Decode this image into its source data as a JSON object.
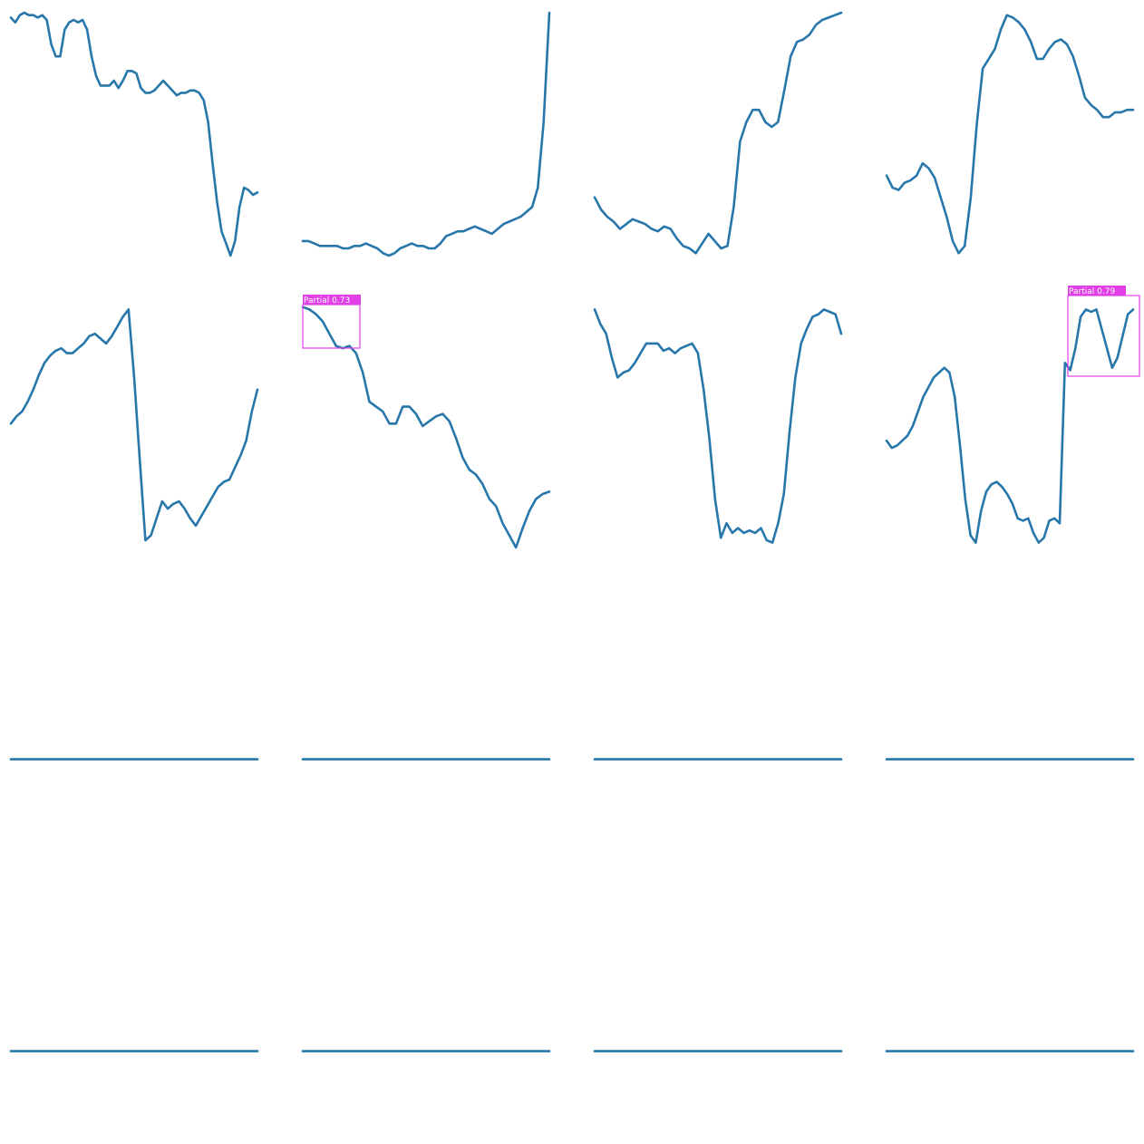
{
  "colors": {
    "line": "#2777ab",
    "detection": "#e040e6",
    "background": "#ffffff"
  },
  "chart_data": [
    {
      "type": "line",
      "panel": 1,
      "values": [
        0.98,
        0.96,
        0.99,
        1.0,
        0.99,
        0.99,
        0.98,
        0.99,
        0.97,
        0.87,
        0.82,
        0.82,
        0.93,
        0.96,
        0.97,
        0.96,
        0.97,
        0.93,
        0.82,
        0.74,
        0.7,
        0.7,
        0.7,
        0.72,
        0.69,
        0.72,
        0.76,
        0.76,
        0.75,
        0.69,
        0.67,
        0.67,
        0.68,
        0.7,
        0.72,
        0.7,
        0.68,
        0.66,
        0.67,
        0.67,
        0.68,
        0.68,
        0.67,
        0.64,
        0.55,
        0.38,
        0.22,
        0.1,
        0.05,
        0.0,
        0.06,
        0.2,
        0.28,
        0.27,
        0.25,
        0.26
      ]
    },
    {
      "type": "line",
      "panel": 2,
      "values": [
        0.06,
        0.06,
        0.05,
        0.04,
        0.04,
        0.04,
        0.04,
        0.03,
        0.03,
        0.04,
        0.04,
        0.05,
        0.04,
        0.03,
        0.01,
        0.0,
        0.01,
        0.03,
        0.04,
        0.05,
        0.04,
        0.04,
        0.03,
        0.03,
        0.05,
        0.08,
        0.09,
        0.1,
        0.1,
        0.11,
        0.12,
        0.11,
        0.1,
        0.09,
        0.11,
        0.13,
        0.14,
        0.15,
        0.16,
        0.18,
        0.2,
        0.28,
        0.55,
        1.0
      ]
    },
    {
      "type": "line",
      "panel": 3,
      "values": [
        0.24,
        0.19,
        0.16,
        0.14,
        0.11,
        0.13,
        0.15,
        0.14,
        0.13,
        0.11,
        0.1,
        0.12,
        0.11,
        0.07,
        0.04,
        0.03,
        0.01,
        0.05,
        0.09,
        0.06,
        0.03,
        0.04,
        0.2,
        0.47,
        0.55,
        0.6,
        0.6,
        0.55,
        0.53,
        0.55,
        0.68,
        0.82,
        0.88,
        0.89,
        0.91,
        0.95,
        0.97,
        0.98,
        0.99,
        1.0
      ]
    },
    {
      "type": "line",
      "panel": 4,
      "values": [
        0.33,
        0.28,
        0.27,
        0.3,
        0.31,
        0.33,
        0.38,
        0.36,
        0.32,
        0.24,
        0.16,
        0.06,
        0.01,
        0.04,
        0.24,
        0.54,
        0.77,
        0.81,
        0.85,
        0.93,
        0.99,
        0.98,
        0.96,
        0.93,
        0.88,
        0.81,
        0.81,
        0.85,
        0.88,
        0.89,
        0.87,
        0.82,
        0.74,
        0.65,
        0.62,
        0.6,
        0.57,
        0.57,
        0.59,
        0.59,
        0.6,
        0.6
      ]
    },
    {
      "type": "line",
      "panel": 5,
      "values": [
        0.51,
        0.54,
        0.56,
        0.6,
        0.65,
        0.71,
        0.76,
        0.79,
        0.81,
        0.82,
        0.8,
        0.8,
        0.82,
        0.84,
        0.87,
        0.88,
        0.86,
        0.84,
        0.87,
        0.91,
        0.95,
        0.98,
        0.7,
        0.36,
        0.03,
        0.05,
        0.12,
        0.19,
        0.16,
        0.18,
        0.19,
        0.16,
        0.12,
        0.09,
        0.13,
        0.17,
        0.21,
        0.25,
        0.27,
        0.28,
        0.33,
        0.38,
        0.44,
        0.56,
        0.65
      ]
    },
    {
      "type": "line",
      "panel": 6,
      "values": [
        0.99,
        0.98,
        0.96,
        0.93,
        0.88,
        0.83,
        0.82,
        0.83,
        0.8,
        0.72,
        0.6,
        0.58,
        0.56,
        0.51,
        0.51,
        0.58,
        0.58,
        0.55,
        0.5,
        0.52,
        0.54,
        0.55,
        0.52,
        0.45,
        0.37,
        0.32,
        0.3,
        0.26,
        0.2,
        0.17,
        0.1,
        0.05,
        0.0,
        0.08,
        0.15,
        0.2,
        0.22,
        0.23
      ]
    },
    {
      "type": "line",
      "panel": 7,
      "values": [
        0.98,
        0.92,
        0.88,
        0.78,
        0.7,
        0.72,
        0.73,
        0.76,
        0.8,
        0.84,
        0.84,
        0.84,
        0.81,
        0.82,
        0.8,
        0.82,
        0.83,
        0.84,
        0.8,
        0.65,
        0.45,
        0.2,
        0.04,
        0.1,
        0.06,
        0.08,
        0.06,
        0.07,
        0.06,
        0.08,
        0.03,
        0.02,
        0.1,
        0.22,
        0.48,
        0.7,
        0.84,
        0.9,
        0.95,
        0.96,
        0.98,
        0.97,
        0.96,
        0.88
      ]
    },
    {
      "type": "line",
      "panel": 8,
      "values": [
        0.44,
        0.41,
        0.42,
        0.44,
        0.46,
        0.5,
        0.56,
        0.62,
        0.66,
        0.7,
        0.72,
        0.74,
        0.72,
        0.62,
        0.42,
        0.2,
        0.05,
        0.02,
        0.15,
        0.23,
        0.26,
        0.27,
        0.25,
        0.22,
        0.18,
        0.12,
        0.11,
        0.12,
        0.06,
        0.02,
        0.04,
        0.11,
        0.12,
        0.1,
        0.76,
        0.73,
        0.82,
        0.95,
        0.98,
        0.97,
        0.98,
        0.9,
        0.82,
        0.74,
        0.78,
        0.87,
        0.96,
        0.98
      ]
    },
    {
      "type": "line",
      "panel": 9,
      "values": [
        0.0,
        0.0
      ]
    },
    {
      "type": "line",
      "panel": 10,
      "values": [
        0.0,
        0.0
      ]
    },
    {
      "type": "line",
      "panel": 11,
      "values": [
        0.0,
        0.0
      ]
    },
    {
      "type": "line",
      "panel": 12,
      "values": [
        0.0,
        0.0
      ]
    },
    {
      "type": "line",
      "panel": 13,
      "values": [
        0.0,
        0.0
      ]
    },
    {
      "type": "line",
      "panel": 14,
      "values": [
        0.0,
        0.0
      ]
    },
    {
      "type": "line",
      "panel": 15,
      "values": [
        0.0,
        0.0
      ]
    },
    {
      "type": "line",
      "panel": 16,
      "values": [
        0.0,
        0.0
      ]
    }
  ],
  "detections": [
    {
      "panel": 6,
      "label": "Partial  0.73"
    },
    {
      "panel": 8,
      "label": "Partial  0.79"
    }
  ]
}
